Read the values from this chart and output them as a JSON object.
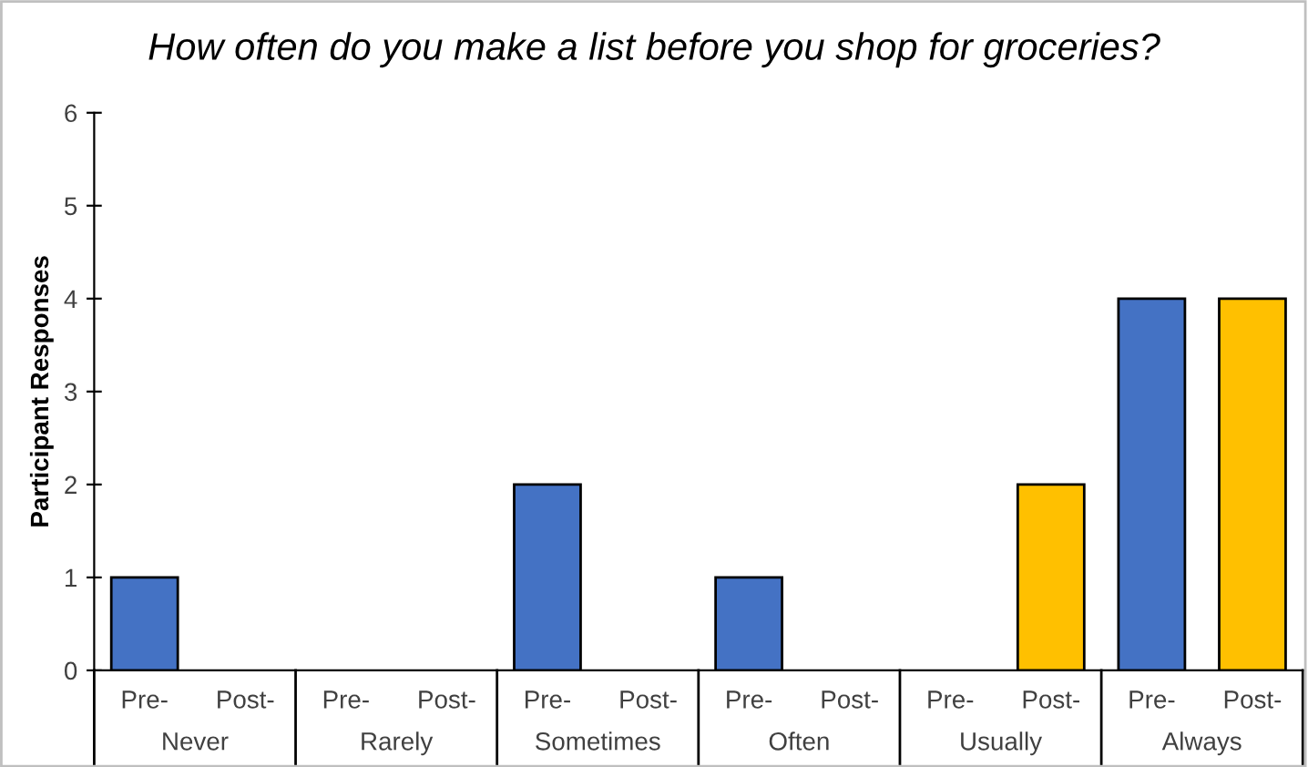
{
  "chart_data": {
    "type": "bar",
    "title": "How often do you make a list before you shop for groceries?",
    "ylabel": "Participant Responses",
    "categories": [
      "Never",
      "Rarely",
      "Sometimes",
      "Often",
      "Usually",
      "Always"
    ],
    "series": [
      {
        "name": "Pre-",
        "color": "#4472c4",
        "values": [
          1,
          0,
          2,
          1,
          0,
          4
        ]
      },
      {
        "name": "Post-",
        "color": "#ffc000",
        "values": [
          0,
          0,
          0,
          0,
          2,
          4
        ]
      }
    ],
    "ylim": [
      0,
      6
    ],
    "yticks": [
      0,
      1,
      2,
      3,
      4,
      5,
      6
    ],
    "grid": false,
    "legend": false
  }
}
